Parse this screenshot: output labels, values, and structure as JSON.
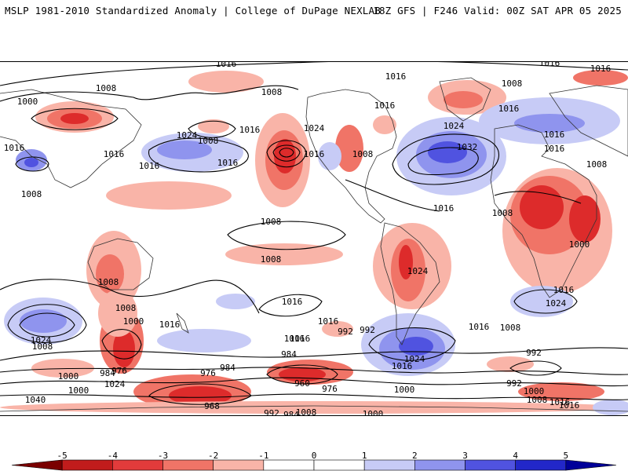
{
  "header": {
    "left_title": "MSLP 1981-2010 Standardized Anomaly | College of DuPage NEXLAB",
    "right_title": "18Z GFS | F246 Valid: 00Z SAT APR 05 2025"
  },
  "map": {
    "projection": "global cylindrical",
    "contour_labels": [
      "1016",
      "1008",
      "1016",
      "1008",
      "1016",
      "1016",
      "1016",
      "1000",
      "1008",
      "1016",
      "1016",
      "1024",
      "1008",
      "1016",
      "1024",
      "1016",
      "1016",
      "1016",
      "1016",
      "1032",
      "1016",
      "1024",
      "1016",
      "1008",
      "1016",
      "1008",
      "1008",
      "1008",
      "1008",
      "1008",
      "1008",
      "1008",
      "1024",
      "1000",
      "1016",
      "1016",
      "1024",
      "1016",
      "1016",
      "1024",
      "992",
      "1000",
      "1016",
      "1016",
      "1008",
      "1000",
      "1008",
      "1016",
      "984",
      "992",
      "1016",
      "1024",
      "1040",
      "1000",
      "1000",
      "992",
      "984",
      "976",
      "1024",
      "976",
      "984",
      "968",
      "960",
      "976",
      "992",
      "984",
      "1008",
      "1000",
      "992",
      "1016",
      "1008",
      "1016",
      "1000"
    ],
    "colors": {
      "strong_negative": "#dd2b2b",
      "moderate_negative": "#f07467",
      "weak_negative": "#f9b4a8",
      "weak_positive": "#c7cbf6",
      "moderate_positive": "#8f94ee",
      "strong_positive": "#5053e0",
      "coastline": "#333333",
      "contour": "#000000"
    }
  },
  "colorbar": {
    "labels": [
      "-5",
      "-4",
      "-3",
      "-2",
      "-1",
      "0",
      "1",
      "2",
      "3",
      "4",
      "5"
    ],
    "colors": [
      "#7a0000",
      "#c11c1c",
      "#e23b3b",
      "#f07467",
      "#f9b4a8",
      "#ffffff",
      "#ffffff",
      "#c7cbf6",
      "#8f94ee",
      "#5053e0",
      "#2227c9",
      "#000099"
    ]
  }
}
